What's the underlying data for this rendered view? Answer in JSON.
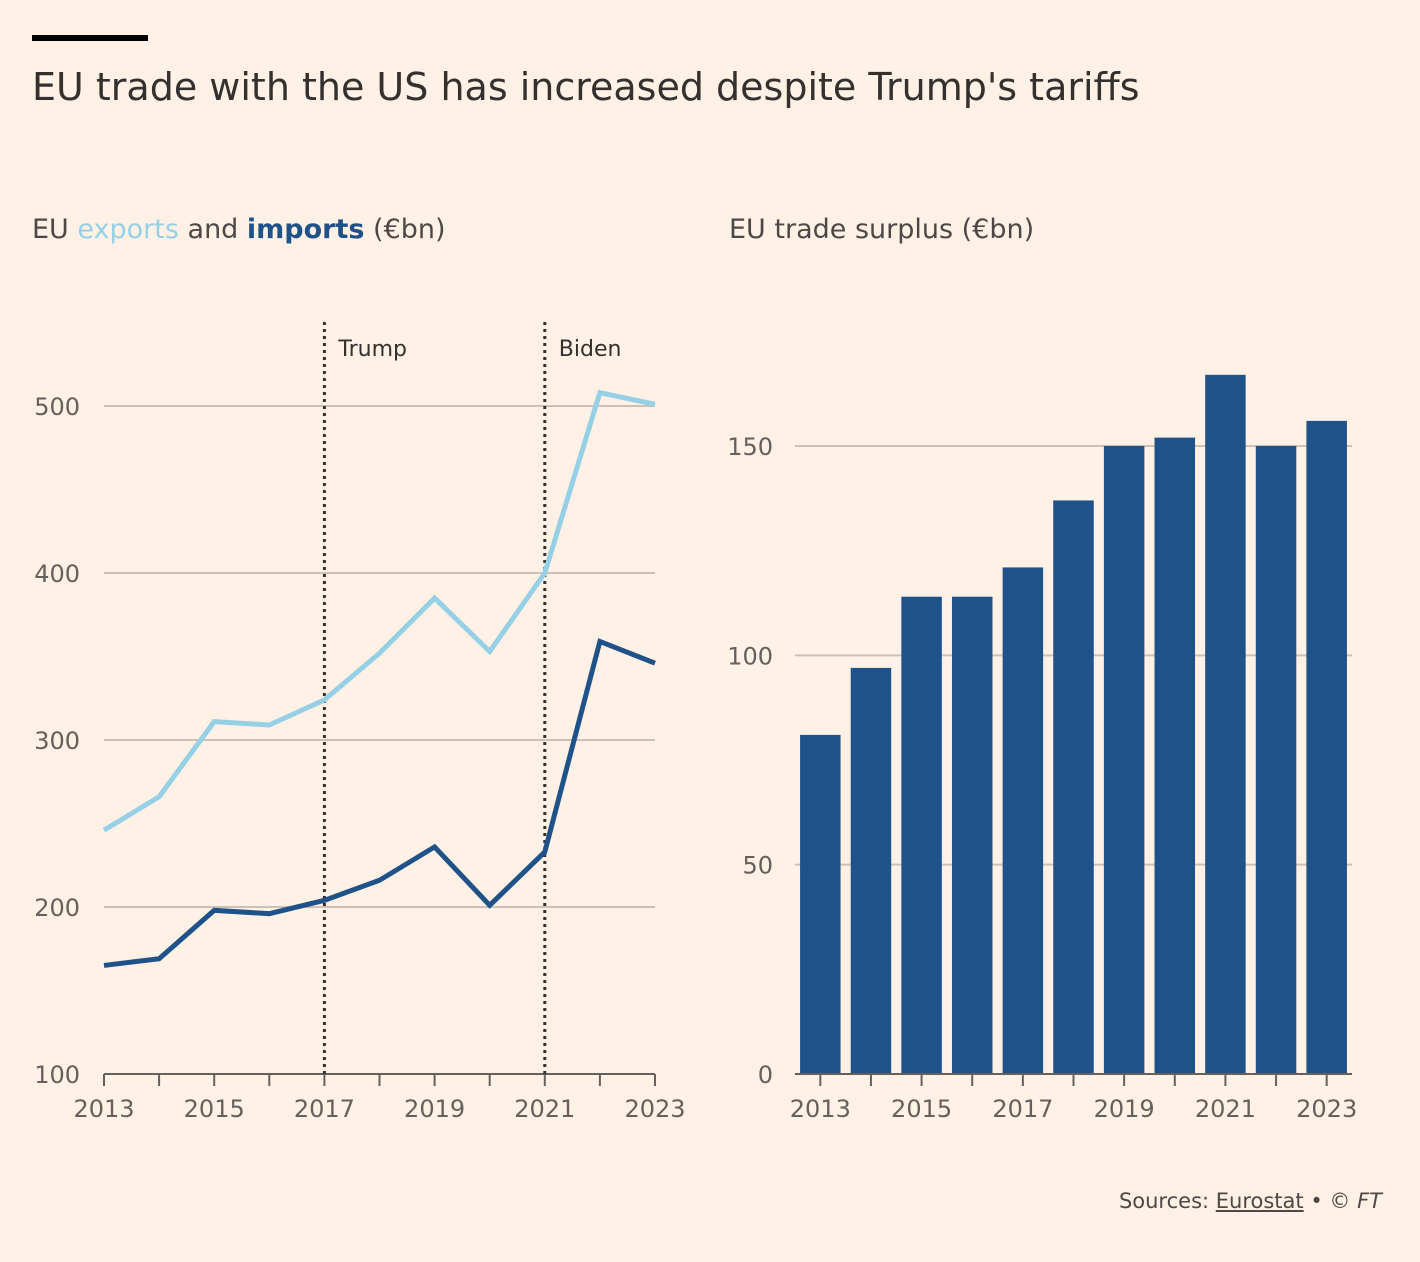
{
  "title": "EU trade with the US has increased despite Trump's tariffs",
  "left_subtitle": {
    "prefix": "EU ",
    "exports_word": "exports",
    "middle": " and ",
    "imports_word": "imports",
    "suffix": " (€bn)"
  },
  "right_subtitle": "EU trade surplus (€bn)",
  "source": {
    "prefix": "Sources: ",
    "link": "Eurostat",
    "sep": " • © ",
    "ft": "FT"
  },
  "colors": {
    "background": "#fff1e5",
    "exports": "#96d0e6",
    "imports": "#1f5289",
    "bars": "#1f5289",
    "grid": "#ccc1b7",
    "text": "#33302e"
  },
  "chart_data": [
    {
      "type": "line",
      "title": "EU exports and imports (€bn)",
      "x": [
        2013,
        2014,
        2015,
        2016,
        2017,
        2018,
        2019,
        2020,
        2021,
        2022,
        2023
      ],
      "xticks": [
        "2013",
        "2015",
        "2017",
        "2019",
        "2021",
        "2023"
      ],
      "yticks": [
        100,
        200,
        300,
        400,
        500
      ],
      "ylim": [
        100,
        540
      ],
      "grid": true,
      "series": [
        {
          "name": "exports",
          "color": "#96d0e6",
          "values": [
            246,
            266,
            311,
            309,
            324,
            352,
            385,
            353,
            400,
            508,
            501
          ]
        },
        {
          "name": "imports",
          "color": "#1f5289",
          "values": [
            165,
            169,
            198,
            196,
            204,
            216,
            236,
            201,
            233,
            359,
            346
          ]
        }
      ],
      "annotations": [
        {
          "x": 2017,
          "label": "Trump"
        },
        {
          "x": 2021,
          "label": "Biden"
        }
      ]
    },
    {
      "type": "bar",
      "title": "EU trade surplus (€bn)",
      "categories": [
        2013,
        2014,
        2015,
        2016,
        2017,
        2018,
        2019,
        2020,
        2021,
        2022,
        2023
      ],
      "xticks": [
        "2013",
        "2015",
        "2017",
        "2019",
        "2021",
        "2023"
      ],
      "values": [
        81,
        97,
        114,
        114,
        121,
        137,
        150,
        152,
        167,
        150,
        156
      ],
      "yticks": [
        0,
        50,
        100,
        150
      ],
      "ylim": [
        0,
        175
      ],
      "grid": true,
      "color": "#1f5289"
    }
  ]
}
